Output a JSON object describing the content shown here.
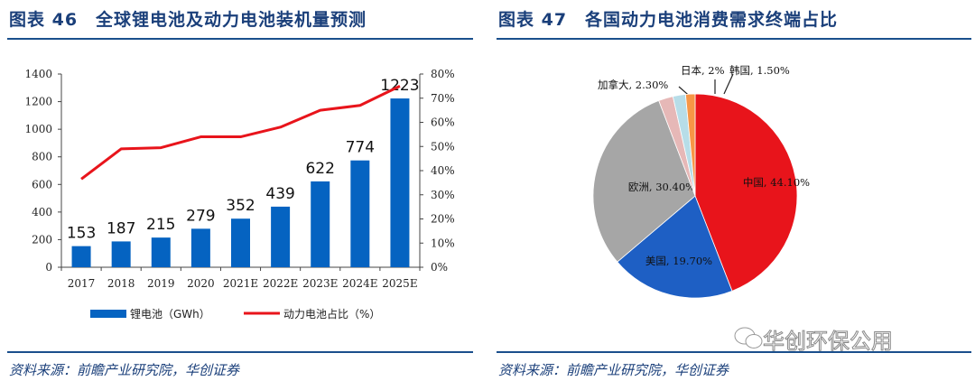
{
  "left": {
    "title": "图表 46　全球锂电池及动力电池装机量预测",
    "source": "资料来源：前瞻产业研究院，华创证券"
  },
  "right": {
    "title": "图表 47　各国动力电池消费需求终端占比",
    "source": "资料来源：前瞻产业研究院，华创证券"
  },
  "watermark": "华创环保公用",
  "chart_data": [
    {
      "type": "bar+line",
      "categories": [
        "2017",
        "2018",
        "2019",
        "2020",
        "2021E",
        "2022E",
        "2023E",
        "2024E",
        "2025E"
      ],
      "series": [
        {
          "name": "锂电池（GWh）",
          "type": "bar",
          "axis": "left",
          "color": "#0563c1",
          "values": [
            153,
            187,
            215,
            279,
            352,
            439,
            622,
            774,
            1223
          ]
        },
        {
          "name": "动力电池占比（%）",
          "type": "line",
          "axis": "right",
          "color": "#e8141b",
          "values": [
            36.5,
            49,
            49.5,
            54,
            54,
            58,
            65,
            67,
            75
          ]
        }
      ],
      "left_axis": {
        "range": [
          0,
          1400
        ],
        "ticks": [
          "0",
          "200",
          "400",
          "600",
          "800",
          "1000",
          "1200",
          "1400"
        ]
      },
      "right_axis": {
        "range": [
          0,
          80
        ],
        "ticks": [
          "0%",
          "10%",
          "20%",
          "30%",
          "40%",
          "50%",
          "60%",
          "70%",
          "80%"
        ]
      },
      "legend_placement": "bottom",
      "grid": false
    },
    {
      "type": "pie",
      "slices": [
        {
          "label": "中国, 44.10%",
          "value": 44.1,
          "color": "#e8141b"
        },
        {
          "label": "美国, 19.70%",
          "value": 19.7,
          "color": "#1e5fc4"
        },
        {
          "label": "欧洲, 30.40%",
          "value": 30.4,
          "color": "#a6a6a6"
        },
        {
          "label": "加拿大, 2.30%",
          "value": 2.3,
          "color": "#e6b8b7"
        },
        {
          "label": "日本, 2%",
          "value": 2,
          "color": "#b7dde8"
        },
        {
          "label": "韩国, 1.50%",
          "value": 1.5,
          "color": "#f79646"
        }
      ]
    }
  ]
}
